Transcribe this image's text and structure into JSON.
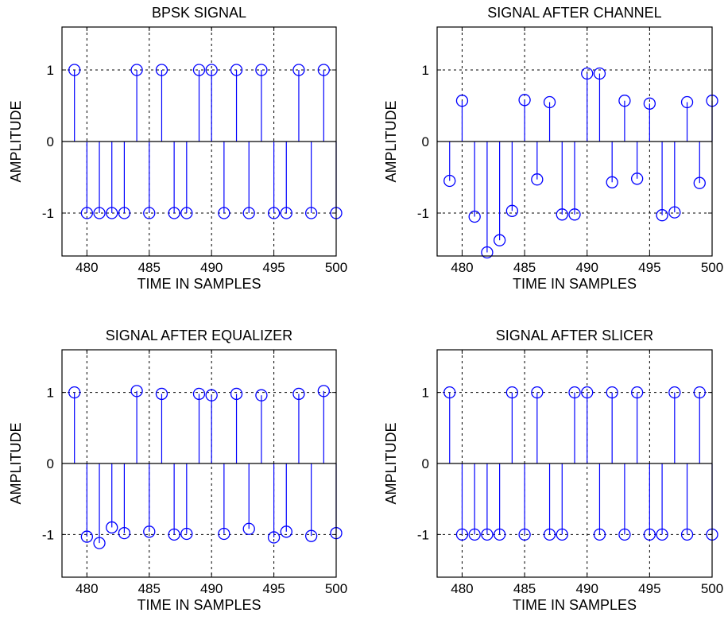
{
  "chart_data": [
    {
      "type": "stem",
      "title": "BPSK SIGNAL",
      "xlabel": "TIME IN SAMPLES",
      "ylabel": "AMPLITUDE",
      "xlim": [
        478,
        500
      ],
      "ylim": [
        -1.6,
        1.6
      ],
      "xticks": [
        480,
        485,
        490,
        495,
        500
      ],
      "yticks": [
        -1,
        0,
        1
      ],
      "grid": true,
      "x": [
        479,
        480,
        481,
        482,
        483,
        484,
        485,
        486,
        487,
        488,
        489,
        490,
        491,
        492,
        493,
        494,
        495,
        496,
        497,
        498,
        499,
        500
      ],
      "values": [
        1,
        -1,
        -1,
        -1,
        -1,
        1,
        -1,
        1,
        -1,
        -1,
        1,
        1,
        -1,
        1,
        -1,
        1,
        -1,
        -1,
        1,
        -1,
        1,
        -1
      ]
    },
    {
      "type": "stem",
      "title": "SIGNAL AFTER CHANNEL",
      "xlabel": "TIME IN SAMPLES",
      "ylabel": "AMPLITUDE",
      "xlim": [
        478,
        500
      ],
      "ylim": [
        -1.6,
        1.6
      ],
      "xticks": [
        480,
        485,
        490,
        495,
        500
      ],
      "yticks": [
        -1,
        0,
        1
      ],
      "grid": true,
      "x": [
        479,
        480,
        481,
        482,
        483,
        484,
        485,
        486,
        487,
        488,
        489,
        490,
        491,
        492,
        493,
        494,
        495,
        496,
        497,
        498,
        499,
        500
      ],
      "values": [
        -0.55,
        0.57,
        -1.05,
        -1.55,
        -1.38,
        -0.97,
        0.58,
        -0.53,
        0.55,
        -1.02,
        -1.02,
        0.95,
        0.95,
        -0.57,
        0.57,
        -0.52,
        0.53,
        -1.03,
        -0.99,
        0.55,
        -0.58,
        0.57
      ]
    },
    {
      "type": "stem",
      "title": "SIGNAL AFTER EQUALIZER",
      "xlabel": "TIME IN SAMPLES",
      "ylabel": "AMPLITUDE",
      "xlim": [
        478,
        500
      ],
      "ylim": [
        -1.6,
        1.6
      ],
      "xticks": [
        480,
        485,
        490,
        495,
        500
      ],
      "yticks": [
        -1,
        0,
        1
      ],
      "grid": true,
      "x": [
        479,
        480,
        481,
        482,
        483,
        484,
        485,
        486,
        487,
        488,
        489,
        490,
        491,
        492,
        493,
        494,
        495,
        496,
        497,
        498,
        499,
        500
      ],
      "values": [
        1.0,
        -1.03,
        -1.12,
        -0.9,
        -0.98,
        1.02,
        -0.96,
        0.98,
        -1.0,
        -0.99,
        0.98,
        0.96,
        -0.99,
        0.98,
        -0.92,
        0.96,
        -1.04,
        -0.96,
        0.98,
        -1.02,
        1.02,
        -0.98
      ]
    },
    {
      "type": "stem",
      "title": "SIGNAL AFTER SLICER",
      "xlabel": "TIME IN SAMPLES",
      "ylabel": "AMPLITUDE",
      "xlim": [
        478,
        500
      ],
      "ylim": [
        -1.6,
        1.6
      ],
      "xticks": [
        480,
        485,
        490,
        495,
        500
      ],
      "yticks": [
        -1,
        0,
        1
      ],
      "grid": true,
      "x": [
        479,
        480,
        481,
        482,
        483,
        484,
        485,
        486,
        487,
        488,
        489,
        490,
        491,
        492,
        493,
        494,
        495,
        496,
        497,
        498,
        499,
        500
      ],
      "values": [
        1,
        -1,
        -1,
        -1,
        -1,
        1,
        -1,
        1,
        -1,
        -1,
        1,
        1,
        -1,
        1,
        -1,
        1,
        -1,
        -1,
        1,
        -1,
        1,
        -1
      ]
    }
  ],
  "colors": {
    "stem": "#0000ff",
    "axis": "#000000",
    "grid": "#000000",
    "background": "#ffffff"
  }
}
